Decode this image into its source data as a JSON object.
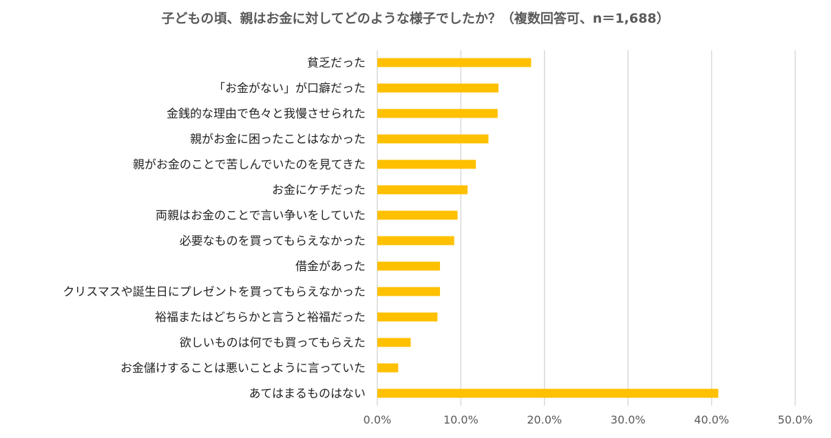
{
  "chart_data": {
    "type": "bar",
    "orientation": "horizontal",
    "title": "子どもの頃、親はお金に対してどのような様子でしたか？（複数回答可、n＝1,688）",
    "categories": [
      "貧乏だった",
      "「お金がない」が口癖だった",
      "金銭的な理由で色々と我慢させられた",
      "親がお金に困ったことはなかった",
      "親がお金のことで苦しんでいたのを見てきた",
      "お金にケチだった",
      "両親はお金のことで言い争いをしていた",
      "必要なものを買ってもらえなかった",
      "借金があった",
      "クリスマスや誕生日にプレゼントを買ってもらえなかった",
      "裕福またはどちらかと言うと裕福だった",
      "欲しいものは何でも買ってもらえた",
      "お金儲けすることは悪いことように言っていた",
      "あてはまるものはない"
    ],
    "values": [
      18.4,
      14.5,
      14.4,
      13.3,
      11.8,
      10.8,
      9.6,
      9.2,
      7.5,
      7.5,
      7.2,
      4.0,
      2.5,
      40.8
    ],
    "xlim": [
      0,
      50
    ],
    "xticks": [
      "0.0%",
      "10.0%",
      "20.0%",
      "30.0%",
      "40.0%",
      "50.0%"
    ],
    "xtick_values": [
      0,
      10,
      20,
      30,
      40,
      50
    ],
    "grid": true,
    "bar_color": "#FFC000",
    "grid_color": "#D9D9D9"
  }
}
